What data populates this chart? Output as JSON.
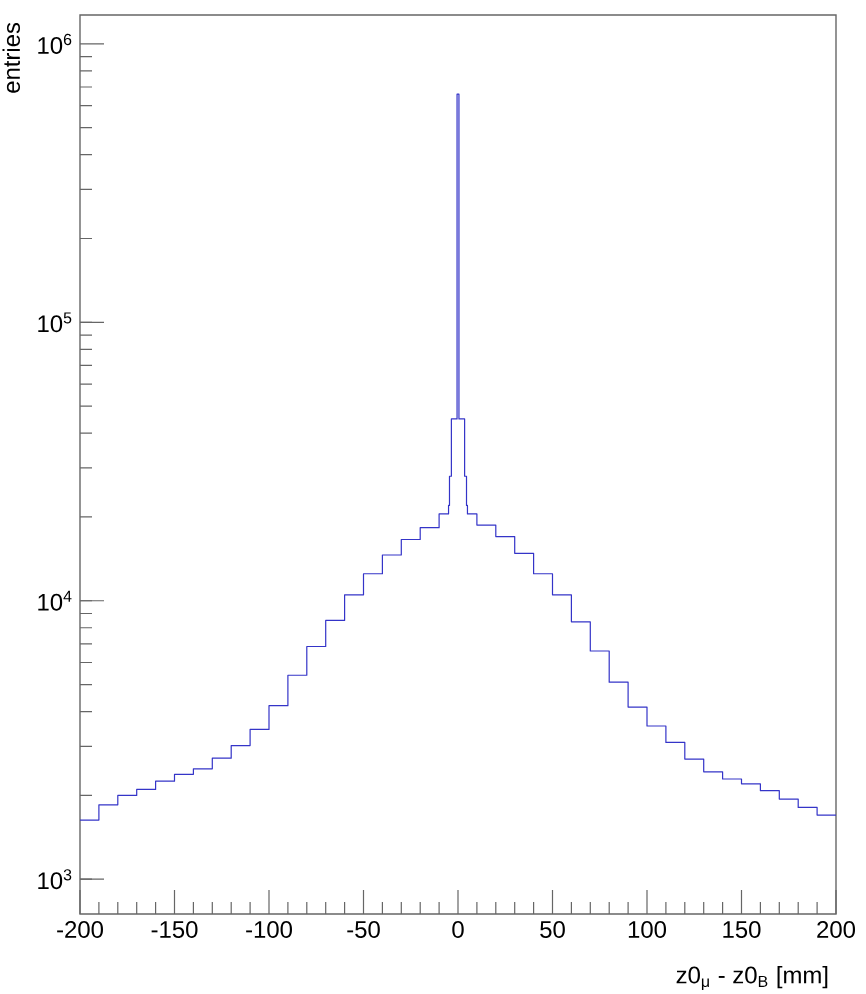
{
  "chart_data": {
    "type": "histogram",
    "xlabel": "z0$_{μ}$ - z0$_{B}$ [mm]",
    "ylabel": "entries",
    "color": "#3434c8",
    "log": "y",
    "bins": [
      -200,
      -190,
      -180,
      -170,
      -160,
      -150,
      -140,
      -130,
      -120,
      -110,
      -100,
      -90,
      -80,
      -70,
      -60,
      -50,
      -40,
      -30,
      -20,
      -10,
      -5,
      -4.5,
      -3.5,
      -0.5,
      0.5,
      3.5,
      4.5,
      5,
      10,
      20,
      30,
      40,
      50,
      60,
      70,
      80,
      90,
      100,
      110,
      120,
      130,
      140,
      150,
      160,
      170,
      180,
      190,
      200
    ],
    "values": [
      1630,
      1850,
      2000,
      2100,
      2250,
      2380,
      2490,
      2720,
      3020,
      3450,
      4200,
      5400,
      6850,
      8500,
      10500,
      12500,
      14600,
      16600,
      18300,
      20500,
      22000,
      28000,
      45000,
      660000,
      45000,
      28000,
      22000,
      20500,
      18700,
      17000,
      14800,
      12500,
      10500,
      8400,
      6600,
      5100,
      4150,
      3550,
      3100,
      2700,
      2430,
      2290,
      2200,
      2080,
      1940,
      1810,
      1700
    ],
    "xlim": [
      -200,
      200
    ],
    "ylim": [
      750,
      1270000
    ],
    "xticks": [
      -200,
      -150,
      -100,
      -50,
      0,
      50,
      100,
      150,
      200
    ],
    "yticks": [
      {
        "value": 1000,
        "label": "10$^{3}$"
      },
      {
        "value": 10000,
        "label": "10$^{4}$"
      },
      {
        "value": 100000,
        "label": "10$^{5}$"
      },
      {
        "value": 1000000,
        "label": "10$^{6}$"
      }
    ]
  }
}
